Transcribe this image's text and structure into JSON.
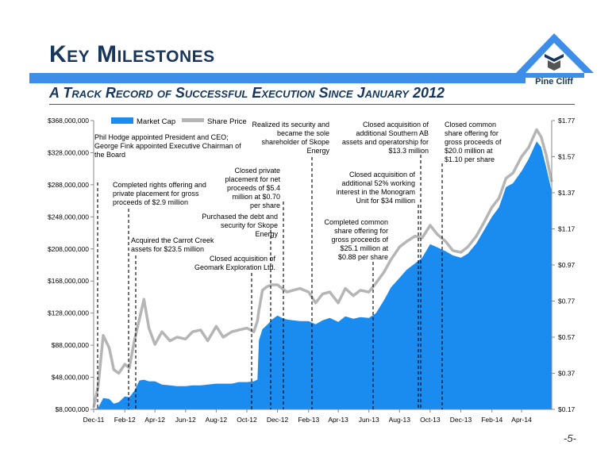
{
  "header": {
    "title": "Key Milestones",
    "subtitle": "A Track Record of Successful Execution Since January 2012"
  },
  "logo": {
    "text": "Pine Cliff",
    "color": "#3d8ee8"
  },
  "page_number": "-5-",
  "colors": {
    "market_cap": "#1a8cf0",
    "share_price": "#b5b5b5",
    "band": "#3d8ee8",
    "title": "#17365d"
  },
  "annotations": [
    {
      "text": "Phil Hodge appointed President and CEO; George Fink appointed Executive Chairman of the Board",
      "date": "Jan-12"
    },
    {
      "text": "Completed rights offering and private placement for gross proceeds of  $2.9 million",
      "date": "Mar-12"
    },
    {
      "text": "Acquired the Carrot Creek assets for $23.5 million",
      "date": "Mar-12"
    },
    {
      "text": "Closed acquisition of Geomark Exploration Ltd.",
      "date": "Oct-12"
    },
    {
      "text": "Purchased the debt and security for Skope Energy",
      "date": "Nov-12"
    },
    {
      "text": "Closed private placement for net proceeds of  $5.4 million at $0.70 per share",
      "date": "Dec-12"
    },
    {
      "text": "Realized its security and became the sole shareholder of Skope Energy",
      "date": "Feb-13"
    },
    {
      "text": "Completed common share offering for gross proceeds of $25.1 million at $0.88 per share",
      "date": "Jul-13"
    },
    {
      "text": "Closed acquisition of additional 52% working interest in the Monogram Unit for $34 million",
      "date": "Sep-13"
    },
    {
      "text": "Closed acquisition of additional Southern AB assets and operatorship for $13.3 million",
      "date": "Sep-13"
    },
    {
      "text": "Closed common share offering for gross proceeds of $20.0 million at $1.10 per share",
      "date": "Oct-13"
    }
  ],
  "chart_data": {
    "type": "area",
    "title": "",
    "xlabel": "",
    "ylabel": "",
    "legend_position": "top-left",
    "x_ticks": [
      "Dec-11",
      "Feb-12",
      "Apr-12",
      "Jun-12",
      "Aug-12",
      "Oct-12",
      "Dec-12",
      "Feb-13",
      "Apr-13",
      "Jun-13",
      "Aug-13",
      "Oct-13",
      "Dec-13",
      "Feb-14",
      "Apr-14"
    ],
    "y_left_ticks": [
      "$8,000,000",
      "$48,000,000",
      "$88,000,000",
      "$128,000,000",
      "$168,000,000",
      "$208,000,000",
      "$248,000,000",
      "$288,000,000",
      "$328,000,000",
      "$368,000,000"
    ],
    "y_right_ticks": [
      "$0.17",
      "$0.37",
      "$0.57",
      "$0.77",
      "$0.97",
      "$1.17",
      "$1.37",
      "$1.57",
      "$1.77"
    ],
    "ylim_left": [
      8000000,
      368000000
    ],
    "ylim_right": [
      0.17,
      1.77
    ],
    "x_range": [
      "2011-12-01",
      "2014-05-31"
    ],
    "series": [
      {
        "name": "Market Cap",
        "axis": "left",
        "x": [
          "2011-12-01",
          "2011-12-10",
          "2011-12-20",
          "2012-01-01",
          "2012-01-10",
          "2012-01-20",
          "2012-02-01",
          "2012-02-10",
          "2012-02-20",
          "2012-03-01",
          "2012-03-10",
          "2012-03-20",
          "2012-04-01",
          "2012-04-15",
          "2012-05-01",
          "2012-05-15",
          "2012-06-01",
          "2012-06-15",
          "2012-07-01",
          "2012-07-15",
          "2012-08-01",
          "2012-08-15",
          "2012-09-01",
          "2012-09-15",
          "2012-10-01",
          "2012-10-15",
          "2012-10-22",
          "2012-10-25",
          "2012-11-01",
          "2012-11-10",
          "2012-11-20",
          "2012-12-01",
          "2012-12-10",
          "2012-12-20",
          "2013-01-01",
          "2013-01-15",
          "2013-02-01",
          "2013-02-15",
          "2013-03-01",
          "2013-03-15",
          "2013-04-01",
          "2013-04-15",
          "2013-05-01",
          "2013-05-15",
          "2013-06-01",
          "2013-06-15",
          "2013-07-01",
          "2013-07-15",
          "2013-08-01",
          "2013-08-15",
          "2013-09-01",
          "2013-09-15",
          "2013-10-01",
          "2013-10-15",
          "2013-11-01",
          "2013-11-15",
          "2013-12-01",
          "2013-12-15",
          "2014-01-01",
          "2014-01-15",
          "2014-02-01",
          "2014-02-15",
          "2014-03-01",
          "2014-03-15",
          "2014-04-01",
          "2014-04-15",
          "2014-05-01",
          "2014-05-10",
          "2014-05-20",
          "2014-05-31"
        ],
        "values": [
          8000000,
          10000000,
          22000000,
          21000000,
          15000000,
          17000000,
          24000000,
          23000000,
          31000000,
          44000000,
          45000000,
          43000000,
          43000000,
          39000000,
          38000000,
          37000000,
          37000000,
          38000000,
          38000000,
          39000000,
          40000000,
          40000000,
          40000000,
          42000000,
          42000000,
          43000000,
          45000000,
          94000000,
          108000000,
          113000000,
          120000000,
          125000000,
          122000000,
          120000000,
          119000000,
          118000000,
          118000000,
          114000000,
          119000000,
          122000000,
          117000000,
          124000000,
          121000000,
          123000000,
          122000000,
          128000000,
          144000000,
          160000000,
          172000000,
          182000000,
          190000000,
          197000000,
          214000000,
          210000000,
          205000000,
          200000000,
          197000000,
          202000000,
          215000000,
          230000000,
          248000000,
          260000000,
          285000000,
          290000000,
          305000000,
          320000000,
          342000000,
          335000000,
          310000000,
          280000000
        ]
      },
      {
        "name": "Share Price",
        "axis": "right",
        "x": [
          "2011-12-01",
          "2011-12-10",
          "2011-12-20",
          "2012-01-01",
          "2012-01-10",
          "2012-01-20",
          "2012-02-01",
          "2012-02-10",
          "2012-02-20",
          "2012-03-01",
          "2012-03-10",
          "2012-03-20",
          "2012-04-01",
          "2012-04-15",
          "2012-05-01",
          "2012-05-15",
          "2012-06-01",
          "2012-06-15",
          "2012-07-01",
          "2012-07-15",
          "2012-08-01",
          "2012-08-15",
          "2012-09-01",
          "2012-09-15",
          "2012-10-01",
          "2012-10-15",
          "2012-10-22",
          "2012-10-25",
          "2012-11-01",
          "2012-11-10",
          "2012-11-20",
          "2012-12-01",
          "2012-12-10",
          "2012-12-20",
          "2013-01-01",
          "2013-01-15",
          "2013-02-01",
          "2013-02-15",
          "2013-03-01",
          "2013-03-15",
          "2013-04-01",
          "2013-04-15",
          "2013-05-01",
          "2013-05-15",
          "2013-06-01",
          "2013-06-15",
          "2013-07-01",
          "2013-07-15",
          "2013-08-01",
          "2013-08-15",
          "2013-09-01",
          "2013-09-15",
          "2013-10-01",
          "2013-10-15",
          "2013-11-01",
          "2013-11-15",
          "2013-12-01",
          "2013-12-15",
          "2014-01-01",
          "2014-01-15",
          "2014-02-01",
          "2014-02-15",
          "2014-03-01",
          "2014-03-15",
          "2014-04-01",
          "2014-04-15",
          "2014-05-01",
          "2014-05-10",
          "2014-05-20",
          "2014-05-31"
        ],
        "values": [
          0.18,
          0.3,
          0.58,
          0.51,
          0.39,
          0.37,
          0.42,
          0.4,
          0.55,
          0.67,
          0.78,
          0.62,
          0.53,
          0.6,
          0.55,
          0.57,
          0.56,
          0.6,
          0.61,
          0.55,
          0.63,
          0.57,
          0.6,
          0.61,
          0.62,
          0.6,
          0.66,
          0.72,
          0.83,
          0.85,
          0.86,
          0.86,
          0.84,
          0.82,
          0.83,
          0.84,
          0.82,
          0.76,
          0.81,
          0.82,
          0.76,
          0.84,
          0.8,
          0.83,
          0.82,
          0.87,
          0.93,
          1.0,
          1.07,
          1.1,
          1.13,
          1.12,
          1.19,
          1.14,
          1.1,
          1.05,
          1.04,
          1.07,
          1.13,
          1.2,
          1.29,
          1.34,
          1.45,
          1.48,
          1.57,
          1.62,
          1.72,
          1.68,
          1.58,
          1.43
        ]
      }
    ]
  }
}
